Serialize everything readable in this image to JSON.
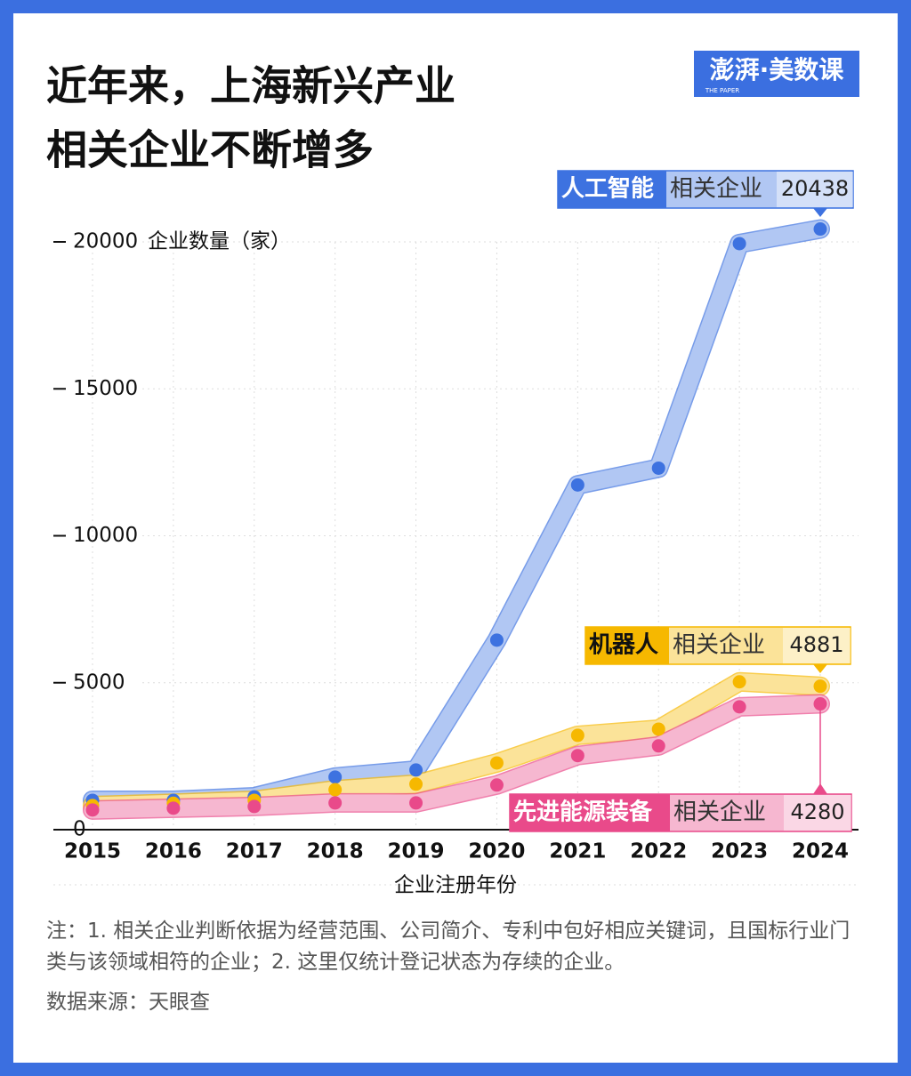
{
  "title_lines": [
    "近年来，上海新兴产业",
    "相关企业不断增多"
  ],
  "logo": "澎湃·美数课",
  "logo_sub": "THE PAPER",
  "chart_data": {
    "type": "line",
    "ylabel": "企业数量（家）",
    "xlabel": "企业注册年份",
    "categories": [
      "2015",
      "2016",
      "2017",
      "2018",
      "2019",
      "2020",
      "2021",
      "2022",
      "2023",
      "2024"
    ],
    "ylim": [
      0,
      20000
    ],
    "yticks": [
      0,
      5000,
      10000,
      15000,
      20000
    ],
    "grid": true,
    "series": [
      {
        "name": "人工智能",
        "name_suffix": "相关企业",
        "color": "#3d72e0",
        "values": [
          1000,
          1000,
          1120,
          1790,
          2030,
          6450,
          11730,
          12300,
          19940,
          20438
        ]
      },
      {
        "name": "机器人",
        "name_suffix": "相关企业",
        "color": "#f6b800",
        "values": [
          820,
          900,
          1000,
          1360,
          1550,
          2270,
          3210,
          3420,
          5030,
          4881
        ]
      },
      {
        "name": "先进能源装备",
        "name_suffix": "相关企业",
        "color": "#e94a8a",
        "values": [
          670,
          730,
          790,
          910,
          910,
          1520,
          2520,
          2850,
          4180,
          4280
        ]
      }
    ]
  },
  "notes": "注：1. 相关企业判断依据为经营范围、公司简介、专利中包好相应关键词，且国标行业门类与该领域相符的企业；2. 这里仅统计登记状态为存续的企业。",
  "source": "数据来源：天眼查"
}
